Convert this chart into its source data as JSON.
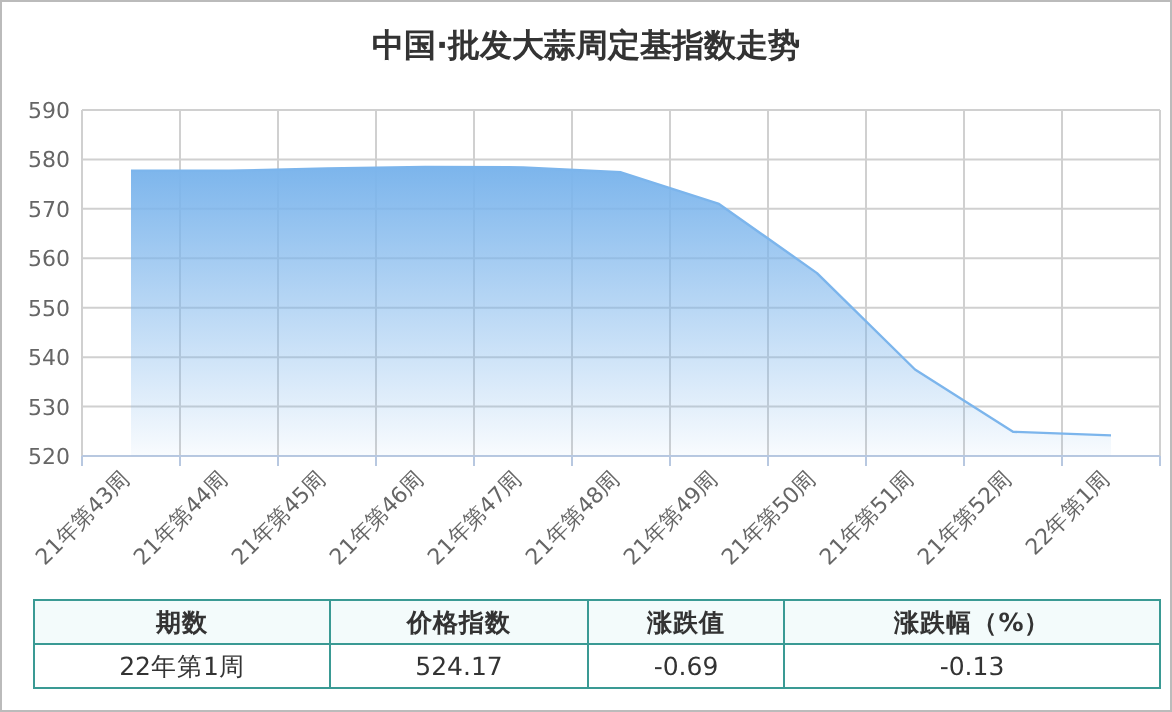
{
  "chart_data": [
    {
      "type": "area",
      "title": "中国·批发大蒜周定基指数走势",
      "categories": [
        "21年第43周",
        "21年第44周",
        "21年第45周",
        "21年第46周",
        "21年第47周",
        "21年第48周",
        "21年第49周",
        "21年第50周",
        "21年第51周",
        "21年第52周",
        "22年第1周"
      ],
      "series": [
        {
          "color": "#7cb5ec",
          "values": [
            577.7,
            577.7,
            578.2,
            578.5,
            578.4,
            577.4,
            571,
            557,
            537.5,
            524.9,
            524.17
          ]
        }
      ],
      "ylim": [
        520,
        590
      ],
      "yticks": [
        520,
        530,
        540,
        550,
        560,
        570,
        580,
        590
      ],
      "grid": true,
      "marker": "none"
    },
    {
      "type": "other",
      "annotations": [
        "期数",
        "价格指数",
        "涨跌值",
        "涨跌幅（%）",
        "22年第1周",
        "524.17",
        "-0.69",
        "-0.13"
      ]
    }
  ]
}
